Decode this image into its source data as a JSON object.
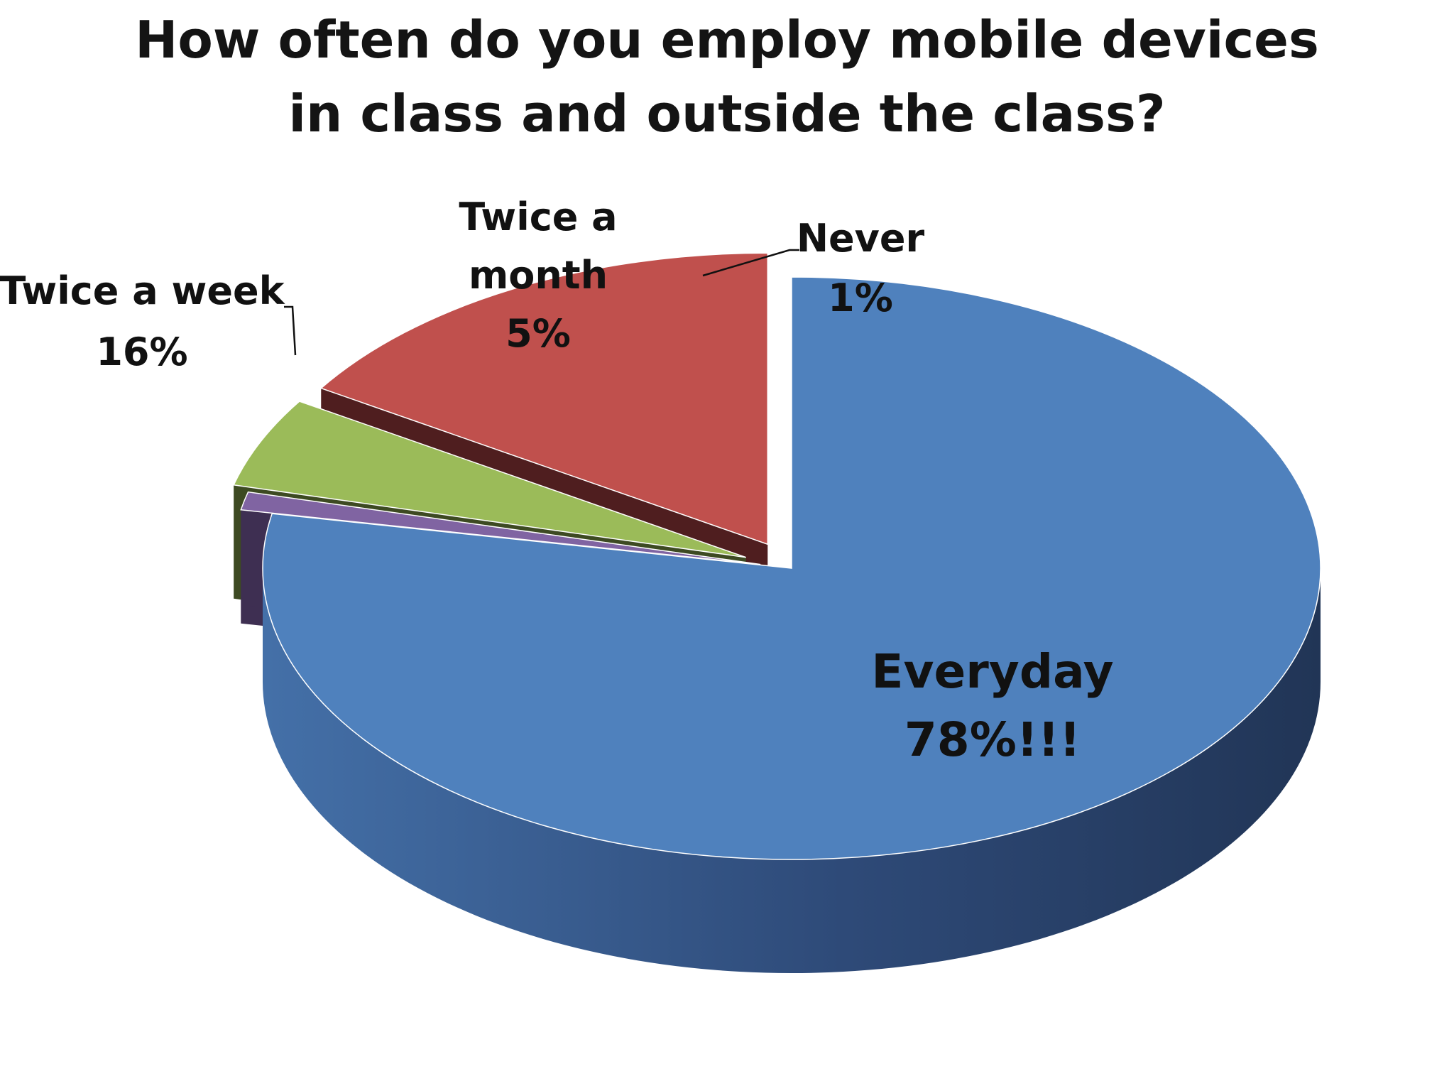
{
  "chart_data": {
    "type": "pie",
    "title": "How often do you employ mobile devices in class and outside the class?",
    "title_lines": [
      "How often do you employ mobile devices",
      "in class and outside the class?"
    ],
    "three_d": true,
    "exploded": true,
    "slices": [
      {
        "name": "Everyday",
        "value": 78,
        "label_value": "78%!!!",
        "color": "#4F81BD",
        "side_color_dark": "#223658",
        "side_color_light": "#4470A8"
      },
      {
        "name": "Never",
        "value": 1,
        "label_value": "1%",
        "color": "#8064A2",
        "side_color_dark": "#3E2F52",
        "side_color_light": "#5C4678"
      },
      {
        "name": "Twice a month",
        "label_lines": [
          "Twice a",
          "month"
        ],
        "value": 5,
        "label_value": "5%",
        "color": "#9BBB59",
        "side_color_dark": "#3D4A22",
        "side_color_light": "#4A5A28"
      },
      {
        "name": "Twice a week",
        "value": 16,
        "label_value": "16%",
        "color": "#C0504D",
        "side_color_dark": "#4F1E1F",
        "side_color_light": "#5A2223"
      }
    ]
  }
}
